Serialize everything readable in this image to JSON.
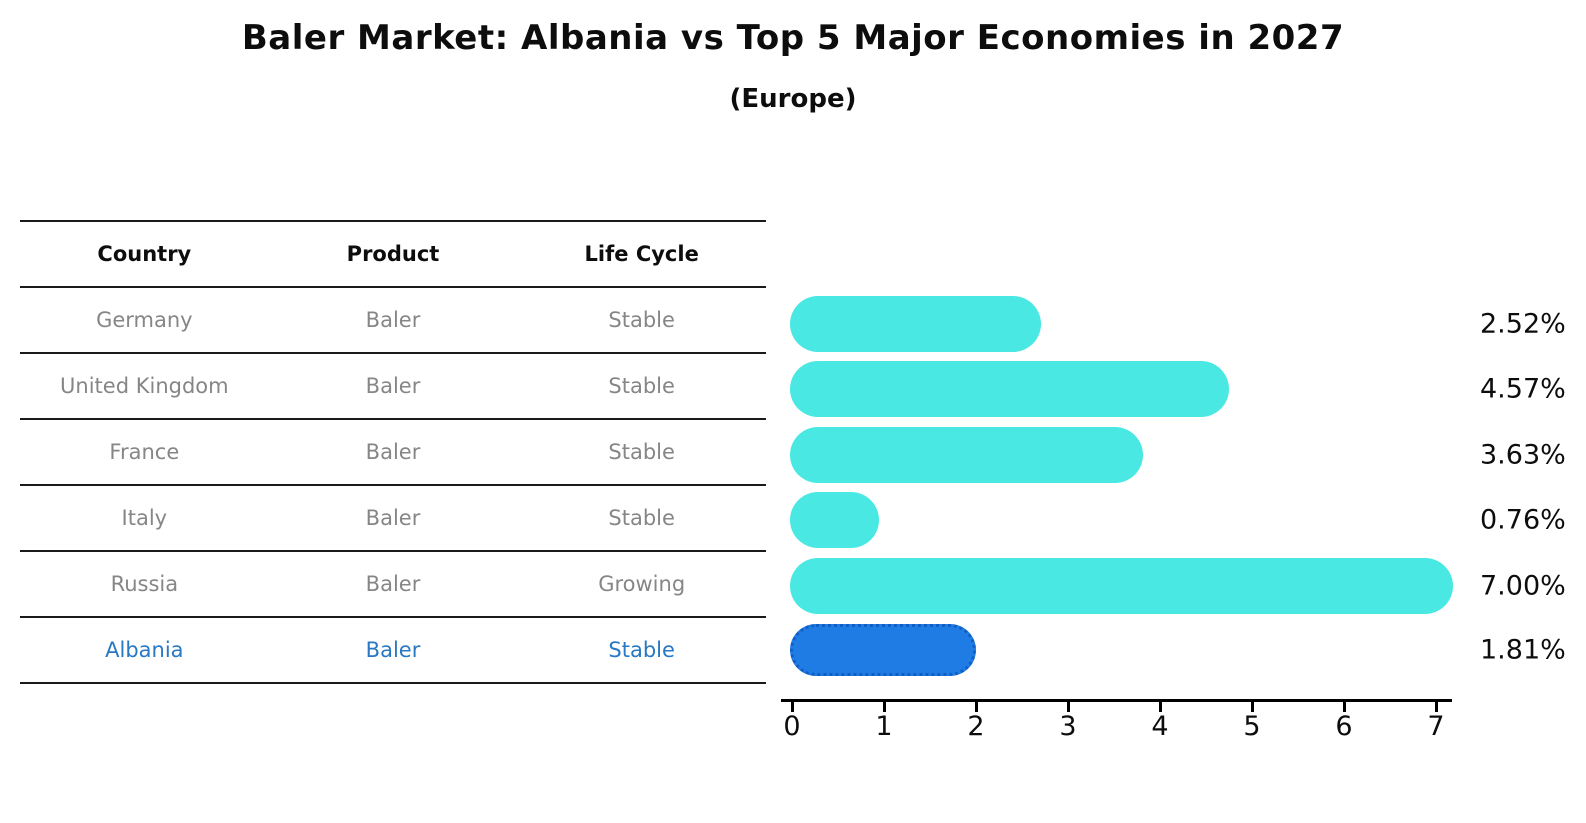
{
  "title": "Baler Market: Albania vs Top 5 Major Economies in 2027",
  "subtitle": "(Europe)",
  "table": {
    "headers": {
      "country": "Country",
      "product": "Product",
      "life_cycle": "Life Cycle"
    },
    "rows": [
      {
        "country": "Germany",
        "product": "Baler",
        "life_cycle": "Stable",
        "highlighted": false
      },
      {
        "country": "United Kingdom",
        "product": "Baler",
        "life_cycle": "Stable",
        "highlighted": false
      },
      {
        "country": "France",
        "product": "Baler",
        "life_cycle": "Stable",
        "highlighted": false
      },
      {
        "country": "Italy",
        "product": "Baler",
        "life_cycle": "Stable",
        "highlighted": false
      },
      {
        "country": "Russia",
        "product": "Baler",
        "life_cycle": "Growing",
        "highlighted": false
      },
      {
        "country": "Albania",
        "product": "Baler",
        "life_cycle": "Stable",
        "highlighted": true
      }
    ]
  },
  "chart_data": {
    "type": "bar",
    "orientation": "horizontal",
    "title": "Baler Market: Albania vs Top 5 Major Economies in 2027",
    "subtitle": "(Europe)",
    "categories": [
      "Germany",
      "United Kingdom",
      "France",
      "Italy",
      "Russia",
      "Albania"
    ],
    "values": [
      2.52,
      4.57,
      3.63,
      0.76,
      7.0,
      1.81
    ],
    "value_labels": [
      "2.52%",
      "4.57%",
      "3.63%",
      "0.76%",
      "7.00%",
      "1.81%"
    ],
    "x_ticks": [
      0,
      1,
      2,
      3,
      4,
      5,
      6,
      7
    ],
    "xlim": [
      0,
      7.2
    ],
    "grid": false,
    "legend": false,
    "bar_color": "#49e8e2",
    "highlight_bar_color": "#1e7ce4",
    "highlight_index": 5,
    "highlight_text_color": "#2878c4"
  }
}
